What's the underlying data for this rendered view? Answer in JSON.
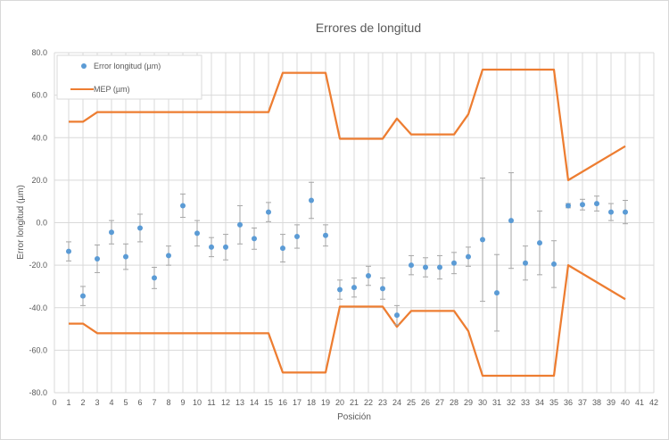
{
  "chart_data": {
    "type": "scatter",
    "title": "Errores de longitud",
    "xlabel": "Posición",
    "ylabel": "Error longitud (µm)",
    "xlim": [
      0,
      42
    ],
    "ylim": [
      -80,
      80
    ],
    "x_ticks": [
      0,
      1,
      2,
      3,
      4,
      5,
      6,
      7,
      8,
      9,
      10,
      11,
      12,
      13,
      14,
      15,
      16,
      17,
      18,
      19,
      20,
      21,
      22,
      23,
      24,
      25,
      26,
      27,
      28,
      29,
      30,
      31,
      32,
      33,
      34,
      35,
      36,
      37,
      38,
      39,
      40,
      41,
      42
    ],
    "y_ticks": [
      80,
      60,
      40,
      20,
      0,
      -20,
      -40,
      -60,
      -80
    ],
    "y_tick_labels": [
      "80.0",
      "60.0",
      "40.0",
      "20.0",
      "0.0",
      "-20.0",
      "-40.0",
      "-60.0",
      "-80.0"
    ],
    "grid": true,
    "legend_position": "top-left",
    "series": [
      {
        "name": "Error longitud (µm)",
        "kind": "scatter-errorbar",
        "color": "#5b9bd5",
        "points": [
          {
            "x": 1,
            "y": -13.5,
            "err": 4.5
          },
          {
            "x": 2,
            "y": -34.5,
            "err": 4.5
          },
          {
            "x": 3,
            "y": -17,
            "err": 6.5
          },
          {
            "x": 4,
            "y": -4.5,
            "err": 5.5
          },
          {
            "x": 5,
            "y": -16,
            "err": 6
          },
          {
            "x": 6,
            "y": -2.5,
            "err": 6.5
          },
          {
            "x": 7,
            "y": -26,
            "err": 5
          },
          {
            "x": 8,
            "y": -15.5,
            "err": 4.5
          },
          {
            "x": 9,
            "y": 8,
            "err": 5.5
          },
          {
            "x": 10,
            "y": -5,
            "err": 6
          },
          {
            "x": 11,
            "y": -11.5,
            "err": 4.5
          },
          {
            "x": 12,
            "y": -11.5,
            "err": 6
          },
          {
            "x": 13,
            "y": -1,
            "err": 9
          },
          {
            "x": 14,
            "y": -7.5,
            "err": 5
          },
          {
            "x": 15,
            "y": 5,
            "err": 4.5
          },
          {
            "x": 16,
            "y": -12,
            "err": 6.5
          },
          {
            "x": 17,
            "y": -6.5,
            "err": 5.5
          },
          {
            "x": 18,
            "y": 10.5,
            "err": 8.5
          },
          {
            "x": 19,
            "y": -6,
            "err": 5
          },
          {
            "x": 20,
            "y": -31.5,
            "err": 4.5
          },
          {
            "x": 21,
            "y": -30.5,
            "err": 4.5
          },
          {
            "x": 22,
            "y": -25,
            "err": 4.5
          },
          {
            "x": 23,
            "y": -31,
            "err": 5
          },
          {
            "x": 24,
            "y": -43.5,
            "err": 4.5
          },
          {
            "x": 25,
            "y": -20,
            "err": 4.5
          },
          {
            "x": 26,
            "y": -21,
            "err": 4.5
          },
          {
            "x": 27,
            "y": -21,
            "err": 5.5
          },
          {
            "x": 28,
            "y": -19,
            "err": 5
          },
          {
            "x": 29,
            "y": -16,
            "err": 4.5
          },
          {
            "x": 30,
            "y": -8,
            "err": 29
          },
          {
            "x": 31,
            "y": -33,
            "err": 18
          },
          {
            "x": 32,
            "y": 1,
            "err": 22.5
          },
          {
            "x": 33,
            "y": -19,
            "err": 8
          },
          {
            "x": 34,
            "y": -9.5,
            "err": 15
          },
          {
            "x": 35,
            "y": -19.5,
            "err": 11
          },
          {
            "x": 36,
            "y": 8,
            "err": 1
          },
          {
            "x": 37,
            "y": 8.5,
            "err": 2.5
          },
          {
            "x": 38,
            "y": 9,
            "err": 3.5
          },
          {
            "x": 39,
            "y": 5,
            "err": 4
          },
          {
            "x": 40,
            "y": 5,
            "err": 5.5
          }
        ]
      },
      {
        "name": "MEP (µm)",
        "kind": "line",
        "color": "#ed7d31",
        "upper": [
          [
            1,
            47.5
          ],
          [
            2,
            47.5
          ],
          [
            3,
            52
          ],
          [
            15,
            52
          ],
          [
            16,
            70.5
          ],
          [
            19,
            70.5
          ],
          [
            20,
            39.5
          ],
          [
            23,
            39.5
          ],
          [
            24,
            49
          ],
          [
            25,
            41.5
          ],
          [
            28,
            41.5
          ],
          [
            29,
            51
          ],
          [
            30,
            72
          ],
          [
            35,
            72
          ],
          [
            36,
            20
          ],
          [
            40,
            36
          ]
        ],
        "lower": [
          [
            1,
            -47.5
          ],
          [
            2,
            -47.5
          ],
          [
            3,
            -52
          ],
          [
            15,
            -52
          ],
          [
            16,
            -70.5
          ],
          [
            19,
            -70.5
          ],
          [
            20,
            -39.5
          ],
          [
            23,
            -39.5
          ],
          [
            24,
            -49
          ],
          [
            25,
            -41.5
          ],
          [
            28,
            -41.5
          ],
          [
            29,
            -51
          ],
          [
            30,
            -72
          ],
          [
            35,
            -72
          ],
          [
            36,
            -20
          ],
          [
            40,
            -36
          ]
        ]
      }
    ]
  }
}
